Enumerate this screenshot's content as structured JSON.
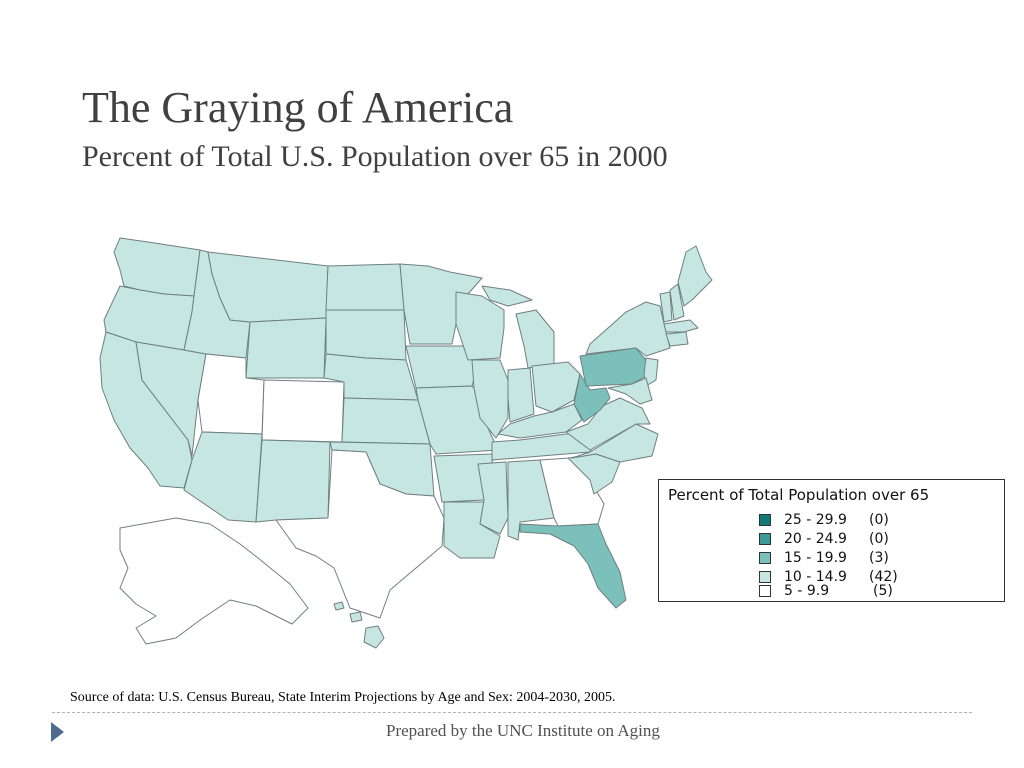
{
  "slide": {
    "title": "The Graying of America",
    "subtitle": "Percent of Total U.S. Population over 65 in 2000",
    "source": "Source of data: U.S. Census Bureau, State Interim Projections by Age and Sex: 2004-2030, 2005.",
    "footer": "Prepared by the UNC Institute on Aging"
  },
  "legend": {
    "title": "Percent of Total Population over 65",
    "items": [
      {
        "range": "25 - 29.9",
        "count": "(0)",
        "color": "#0f7a78"
      },
      {
        "range": "20 - 24.9",
        "count": "(0)",
        "color": "#3c9a98"
      },
      {
        "range": "15 - 19.9",
        "count": "(3)",
        "color": "#7cc0bb"
      },
      {
        "range": "10 - 14.9",
        "count": "(42)",
        "color": "#c6e6e1"
      },
      {
        "range": "5 - 9.9",
        "count": "(5)",
        "color": "#ffffff"
      }
    ]
  },
  "map": {
    "colors": {
      "high": "#7cc0bb",
      "mid": "#c6e6e1",
      "low": "#ffffff",
      "border": "#6f7f80"
    },
    "states_15_19_9": [
      "Pennsylvania",
      "West Virginia",
      "Florida"
    ],
    "states_5_9_9": [
      "Alaska",
      "Utah",
      "Colorado",
      "Texas",
      "Georgia"
    ]
  }
}
